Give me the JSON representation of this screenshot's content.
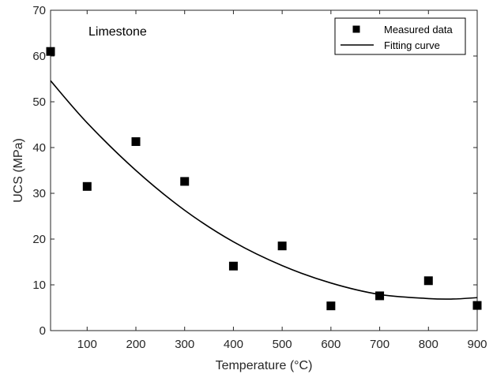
{
  "chart_data": {
    "type": "scatter",
    "annotation": "Limestone",
    "xlabel": "Temperature (°C)",
    "ylabel": "UCS (MPa)",
    "xlim": [
      25,
      900
    ],
    "ylim": [
      0,
      70
    ],
    "xticks": [
      100,
      200,
      300,
      400,
      500,
      600,
      700,
      800,
      900
    ],
    "yticks": [
      0,
      10,
      20,
      30,
      40,
      50,
      60,
      70
    ],
    "grid": false,
    "legend_position": "top-right",
    "series": [
      {
        "name": "Measured data",
        "kind": "markers",
        "marker": "square",
        "color": "#000000",
        "x": [
          25,
          100,
          200,
          300,
          400,
          500,
          600,
          700,
          800,
          900
        ],
        "y": [
          61.0,
          31.5,
          41.3,
          32.6,
          14.1,
          18.5,
          5.4,
          7.6,
          10.9,
          5.5
        ]
      },
      {
        "name": "Fitting curve",
        "kind": "line",
        "color": "#000000",
        "x": [
          25,
          100,
          200,
          300,
          400,
          500,
          600,
          700,
          800,
          850,
          900
        ],
        "y": [
          54.6,
          45.4,
          35.0,
          26.3,
          19.4,
          14.2,
          10.4,
          7.9,
          7.0,
          6.9,
          7.2
        ]
      }
    ]
  }
}
